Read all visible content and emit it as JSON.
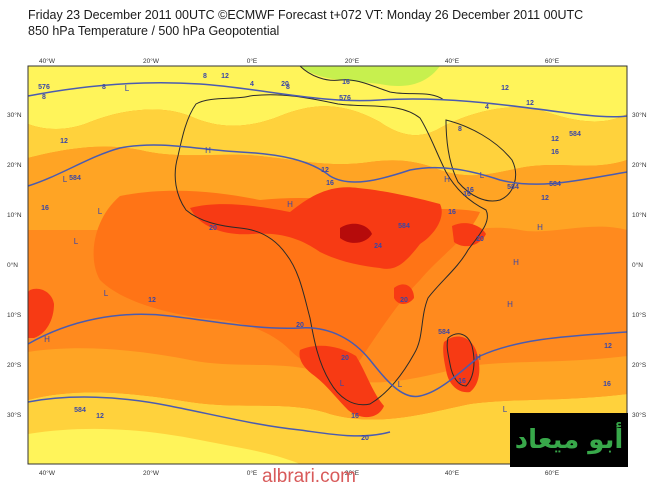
{
  "header": {
    "line1": "Friday 23 December 2011 00UTC ©ECMWF Forecast t+072 VT: Monday 26 December 2011 00UTC",
    "line2": "850 hPa Temperature / 500 hPa Geopotential"
  },
  "axes": {
    "lon_labels": [
      "40°W",
      "20°W",
      "0°E",
      "20°E",
      "40°E",
      "60°E"
    ],
    "lat_labels": [
      "30°N",
      "20°N",
      "10°N",
      "0°N",
      "10°S",
      "20°S",
      "30°S"
    ]
  },
  "contour_labels": [
    "8",
    "576",
    "8",
    "4",
    "8",
    "576",
    "12",
    "4",
    "12",
    "584",
    "12",
    "16",
    "12",
    "584",
    "16",
    "12",
    "16",
    "584",
    "8",
    "584",
    "16",
    "12",
    "20",
    "24",
    "20",
    "16",
    "20",
    "20",
    "584",
    "20",
    "12",
    "16",
    "16",
    "12",
    "584",
    "12",
    "16",
    "20",
    "20",
    "16",
    "12",
    "8",
    "584",
    "16"
  ],
  "region_labels": [
    "L",
    "H",
    "L",
    "H",
    "L",
    "L",
    "H",
    "H",
    "L",
    "H",
    "L",
    "H",
    "L",
    "H",
    "L",
    "H",
    "L"
  ],
  "palette": {
    "outline": "#2a2a2a",
    "contour": "#4a5bb0",
    "temp_band_cool": "#fff03a",
    "temp_band_mild": "#ffd23c",
    "temp_band_warm": "#ffa424",
    "temp_band_hot": "#ff7416",
    "temp_band_hotter": "#f73a14",
    "temp_band_hottest": "#b60b0b"
  },
  "logo_text": "أبو ميعاد",
  "watermark": "albrari.com"
}
